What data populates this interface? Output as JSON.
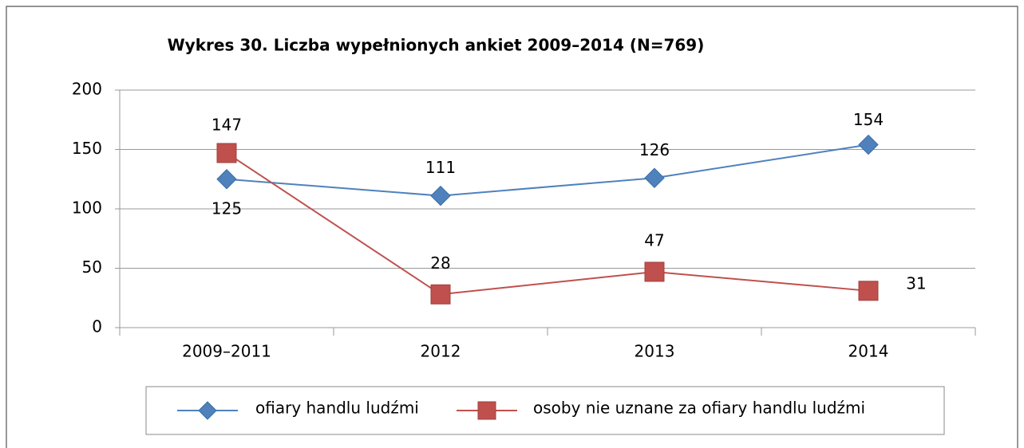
{
  "chart_data": {
    "type": "line",
    "title": "Wykres 30. Liczba wypełnionych ankiet 2009–2014 (N=769)",
    "categories": [
      "2009–2011",
      "2012",
      "2013",
      "2014"
    ],
    "series": [
      {
        "name": "ofiary handlu ludźmi",
        "color": "#4f81bd",
        "marker": "diamond",
        "values": [
          125,
          111,
          126,
          154
        ]
      },
      {
        "name": "osoby nie uznane za ofiary handlu ludźmi",
        "color": "#c0504d",
        "marker": "square",
        "values": [
          147,
          28,
          47,
          31
        ]
      }
    ],
    "ylim": [
      0,
      200
    ],
    "yticks": [
      0,
      50,
      100,
      150,
      200
    ],
    "grid": true,
    "legend": "bottom"
  }
}
